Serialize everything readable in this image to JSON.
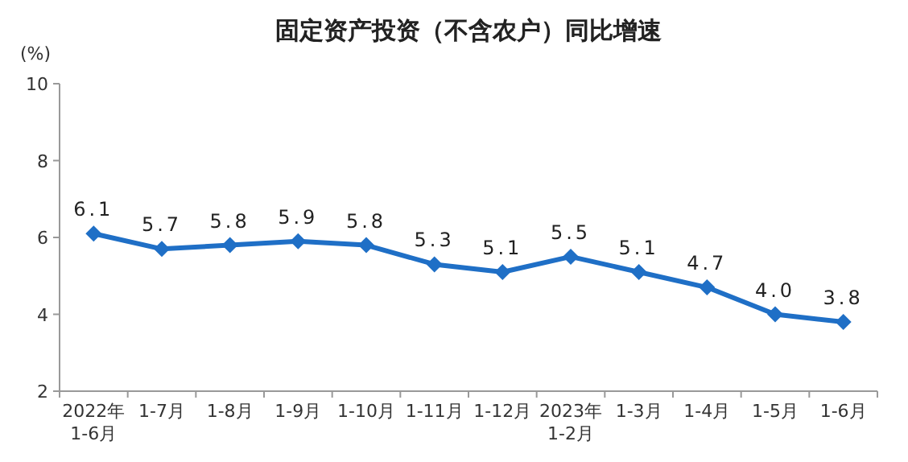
{
  "chart_data": {
    "type": "line",
    "title": "固定资产投资（不含农户）同比增速",
    "ylabel": "(%)",
    "categories": [
      "2022年\n1-6月",
      "1-7月",
      "1-8月",
      "1-9月",
      "1-10月",
      "1-11月",
      "1-12月",
      "2023年\n1-2月",
      "1-3月",
      "1-4月",
      "1-5月",
      "1-6月"
    ],
    "series": [
      {
        "color": "#1f6fc6",
        "values": [
          6.1,
          5.7,
          5.8,
          5.9,
          5.8,
          5.3,
          5.1,
          5.5,
          5.1,
          4.7,
          4.0,
          3.8
        ],
        "value_labels": [
          "6.1",
          "5.7",
          "5.8",
          "5.9",
          "5.8",
          "5.3",
          "5.1",
          "5.5",
          "5.1",
          "4.7",
          "4.0",
          "3.8"
        ]
      }
    ],
    "ylim": [
      2,
      10
    ],
    "yticks": [
      2,
      4,
      6,
      8,
      10
    ],
    "marker": "diamond",
    "grid": false
  }
}
